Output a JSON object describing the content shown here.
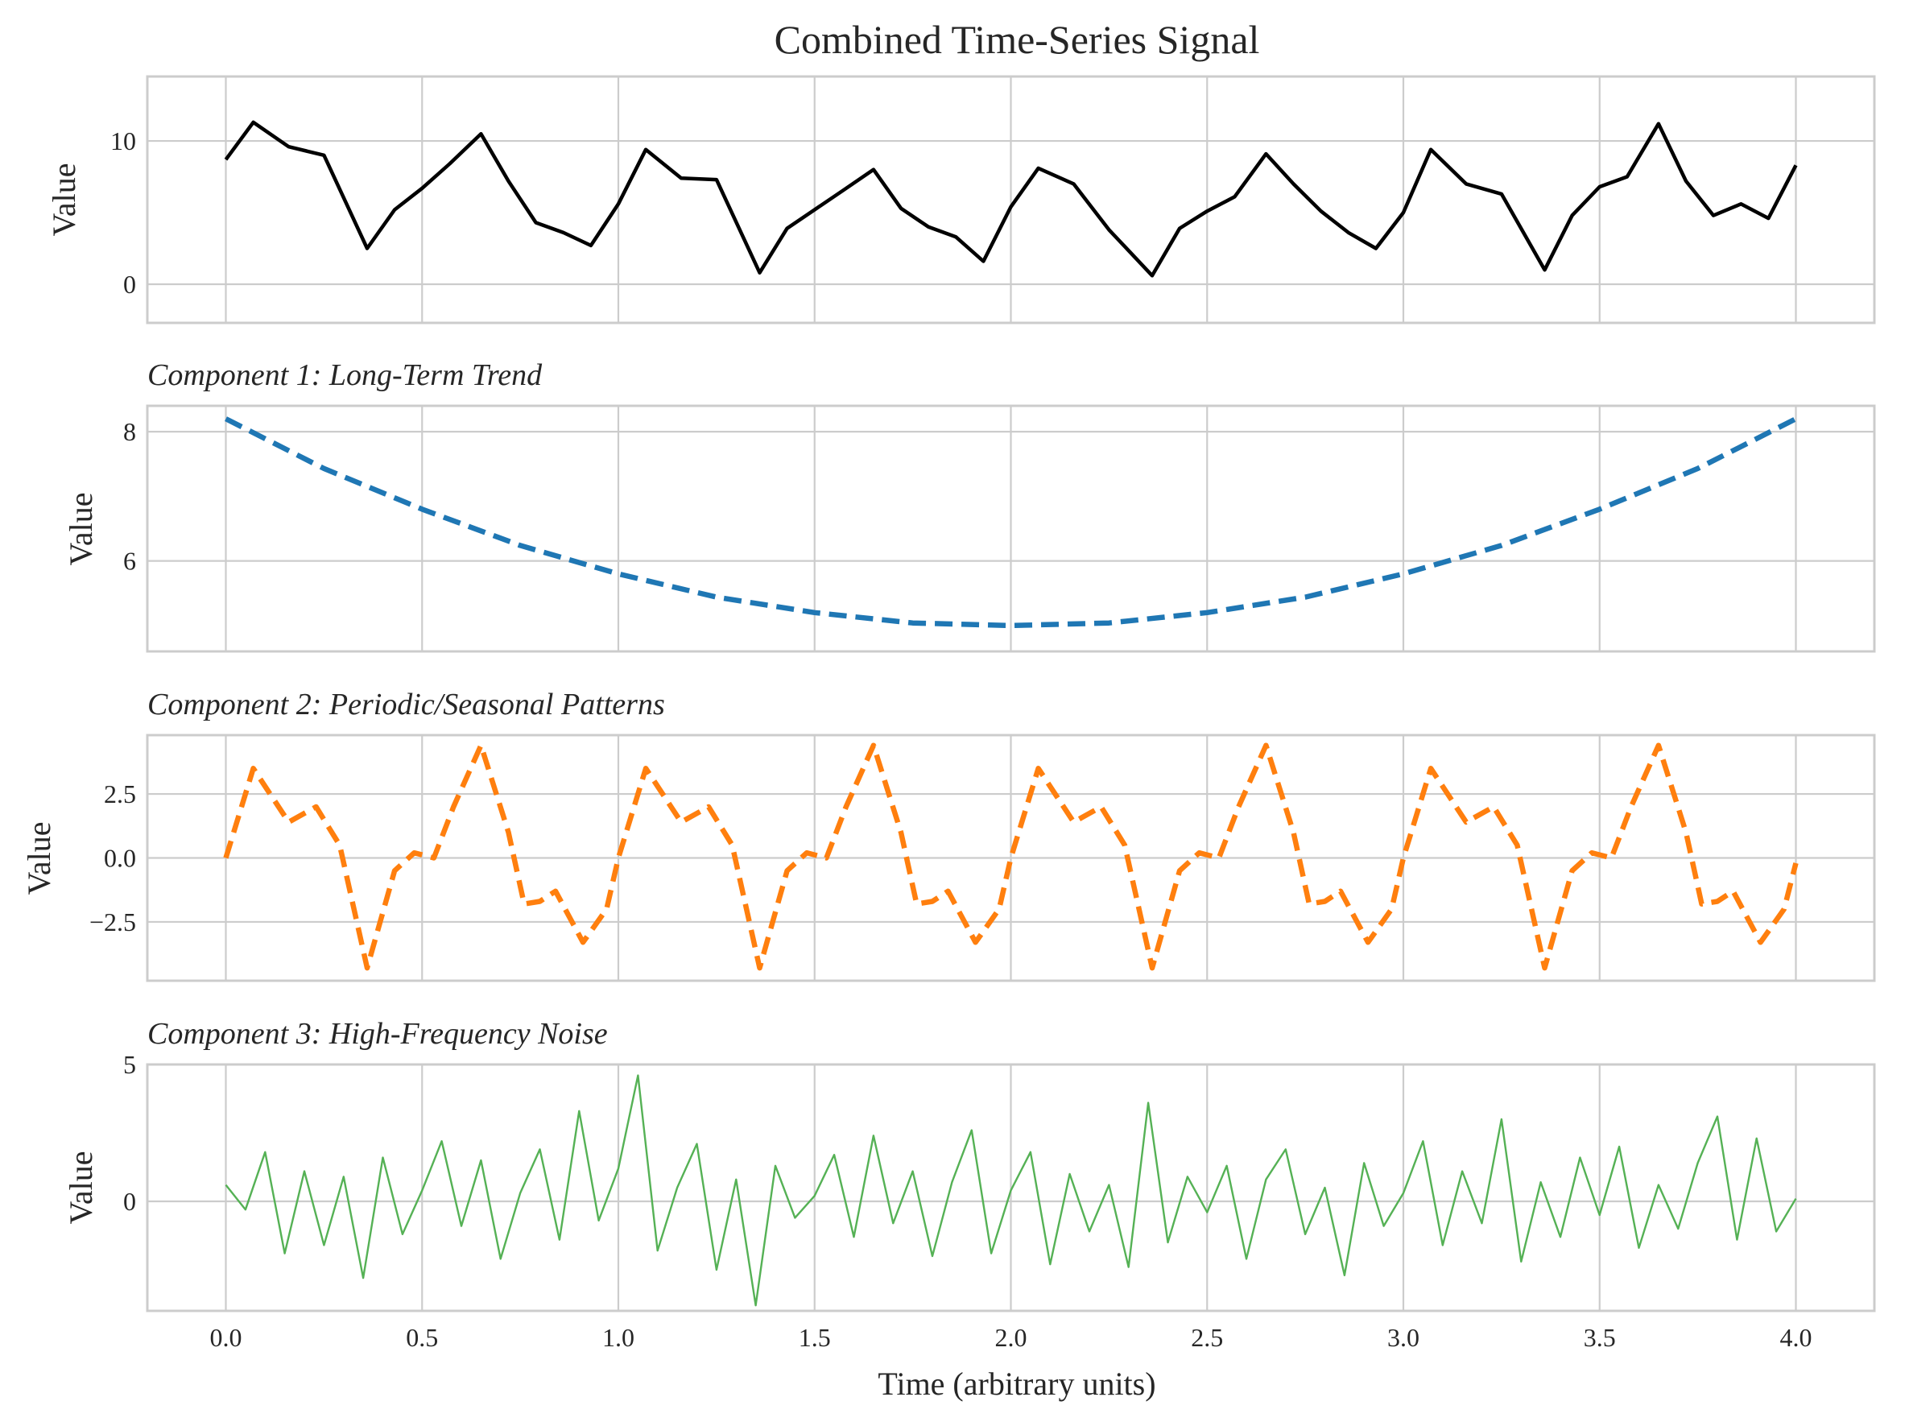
{
  "chart_data": {
    "type": "line",
    "title": "Combined Time-Series Signal",
    "xlabel": "Time (arbitrary units)",
    "xlim": [
      -0.2,
      4.2
    ],
    "xticks": [
      "0.0",
      "0.5",
      "1.0",
      "1.5",
      "2.0",
      "2.5",
      "3.0",
      "3.5",
      "4.0"
    ],
    "grid": true,
    "panels": [
      {
        "id": "combined",
        "subtitle": "",
        "ylabel": "Value",
        "ylim": [
          -2.7,
          14.5
        ],
        "yticks": [
          "0",
          "10"
        ],
        "color": "#000000",
        "style": "solid",
        "series": [
          {
            "name": "",
            "description_only": false,
            "x": [
              0.0,
              0.07,
              0.16,
              0.25,
              0.36,
              0.43,
              0.5,
              0.57,
              0.65,
              0.72,
              0.79,
              0.86,
              0.93,
              1.0,
              1.07,
              1.16,
              1.25,
              1.36,
              1.43,
              1.5,
              1.57,
              1.65,
              1.72,
              1.79,
              1.86,
              1.93,
              2.0,
              2.07,
              2.16,
              2.25,
              2.36,
              2.43,
              2.5,
              2.57,
              2.65,
              2.72,
              2.79,
              2.86,
              2.93,
              3.0,
              3.07,
              3.16,
              3.25,
              3.36,
              3.43,
              3.5,
              3.57,
              3.65,
              3.72,
              3.79,
              3.86,
              3.93,
              4.0
            ],
            "y": [
              8.7,
              11.3,
              9.6,
              9.0,
              2.5,
              5.2,
              6.7,
              8.4,
              10.5,
              7.2,
              4.3,
              3.6,
              2.7,
              5.6,
              9.4,
              7.4,
              7.3,
              0.8,
              3.9,
              5.2,
              6.5,
              8.0,
              5.3,
              4.0,
              3.3,
              1.6,
              5.4,
              8.1,
              7.0,
              3.8,
              0.6,
              3.9,
              5.1,
              6.1,
              9.1,
              7.0,
              5.1,
              3.6,
              2.5,
              5.0,
              9.4,
              7.0,
              6.3,
              1.0,
              4.8,
              6.8,
              7.5,
              11.2,
              7.2,
              4.8,
              5.6,
              4.6,
              8.3
            ]
          }
        ]
      },
      {
        "id": "trend",
        "subtitle": "Component 1: Long-Term Trend",
        "ylabel": "Value",
        "ylim": [
          4.6,
          8.4
        ],
        "yticks": [
          "6",
          "8"
        ],
        "color": "#1f77b4",
        "style": "dashed",
        "series": [
          {
            "name": "",
            "x": [
              0.0,
              0.25,
              0.5,
              0.75,
              1.0,
              1.25,
              1.5,
              1.75,
              2.0,
              2.25,
              2.5,
              2.75,
              3.0,
              3.25,
              3.5,
              3.75,
              4.0
            ],
            "y": [
              8.2,
              7.43,
              6.8,
              6.24,
              5.8,
              5.44,
              5.2,
              5.04,
              5.0,
              5.04,
              5.2,
              5.44,
              5.8,
              6.24,
              6.8,
              7.43,
              8.2
            ]
          }
        ]
      },
      {
        "id": "periodic",
        "subtitle": "Component 2: Periodic/Seasonal Patterns",
        "ylabel": "Value",
        "ylim": [
          -4.8,
          4.8
        ],
        "yticks": [
          "2.5",
          "0.0",
          "−2.5"
        ],
        "color": "#ff7f0e",
        "style": "dashed",
        "series": [
          {
            "name": "",
            "x": [
              0.0,
              0.07,
              0.16,
              0.23,
              0.29,
              0.36,
              0.43,
              0.48,
              0.53,
              0.58,
              0.65,
              0.72,
              0.76,
              0.8,
              0.84,
              0.91,
              0.97,
              1.0,
              1.07,
              1.16,
              1.23,
              1.29,
              1.36,
              1.43,
              1.48,
              1.53,
              1.58,
              1.65,
              1.72,
              1.76,
              1.8,
              1.84,
              1.91,
              1.97,
              2.0,
              2.07,
              2.16,
              2.23,
              2.29,
              2.36,
              2.43,
              2.48,
              2.53,
              2.58,
              2.65,
              2.72,
              2.76,
              2.8,
              2.84,
              2.91,
              2.97,
              3.0,
              3.07,
              3.16,
              3.23,
              3.29,
              3.36,
              3.43,
              3.48,
              3.53,
              3.58,
              3.65,
              3.72,
              3.76,
              3.8,
              3.84,
              3.91,
              3.97,
              4.0
            ],
            "y": [
              0.0,
              3.5,
              1.4,
              2.0,
              0.5,
              -4.3,
              -0.5,
              0.2,
              0.0,
              2.0,
              4.4,
              1.0,
              -1.8,
              -1.7,
              -1.3,
              -3.3,
              -2.0,
              0.0,
              3.5,
              1.4,
              2.0,
              0.5,
              -4.3,
              -0.5,
              0.2,
              0.0,
              2.0,
              4.4,
              1.0,
              -1.8,
              -1.7,
              -1.3,
              -3.3,
              -2.0,
              0.0,
              3.5,
              1.4,
              2.0,
              0.5,
              -4.3,
              -0.5,
              0.2,
              0.0,
              2.0,
              4.4,
              1.0,
              -1.8,
              -1.7,
              -1.3,
              -3.3,
              -2.0,
              0.0,
              3.5,
              1.4,
              2.0,
              0.5,
              -4.3,
              -0.5,
              0.2,
              0.0,
              2.0,
              4.4,
              1.0,
              -1.8,
              -1.7,
              -1.3,
              -3.3,
              -2.0,
              -0.2
            ]
          }
        ]
      },
      {
        "id": "noise",
        "subtitle": "Component 3: High-Frequency Noise",
        "ylabel": "Value",
        "ylim": [
          -4.0,
          5.0
        ],
        "yticks": [
          "5",
          "0"
        ],
        "color": "#55b155",
        "style": "thin",
        "series": [
          {
            "name": "",
            "x": [
              0.0,
              0.05,
              0.1,
              0.15,
              0.2,
              0.25,
              0.3,
              0.35,
              0.4,
              0.45,
              0.5,
              0.55,
              0.6,
              0.65,
              0.7,
              0.75,
              0.8,
              0.85,
              0.9,
              0.95,
              1.0,
              1.05,
              1.1,
              1.15,
              1.2,
              1.25,
              1.3,
              1.35,
              1.4,
              1.45,
              1.5,
              1.55,
              1.6,
              1.65,
              1.7,
              1.75,
              1.8,
              1.85,
              1.9,
              1.95,
              2.0,
              2.05,
              2.1,
              2.15,
              2.2,
              2.25,
              2.3,
              2.35,
              2.4,
              2.45,
              2.5,
              2.55,
              2.6,
              2.65,
              2.7,
              2.75,
              2.8,
              2.85,
              2.9,
              2.95,
              3.0,
              3.05,
              3.1,
              3.15,
              3.2,
              3.25,
              3.3,
              3.35,
              3.4,
              3.45,
              3.5,
              3.55,
              3.6,
              3.65,
              3.7,
              3.75,
              3.8,
              3.85,
              3.9,
              3.95,
              4.0
            ],
            "y": [
              0.6,
              -0.3,
              1.8,
              -1.9,
              1.1,
              -1.6,
              0.9,
              -2.8,
              1.6,
              -1.2,
              0.4,
              2.2,
              -0.9,
              1.5,
              -2.1,
              0.3,
              1.9,
              -1.4,
              3.3,
              -0.7,
              1.2,
              4.6,
              -1.8,
              0.5,
              2.1,
              -2.5,
              0.8,
              -3.8,
              1.3,
              -0.6,
              0.2,
              1.7,
              -1.3,
              2.4,
              -0.8,
              1.1,
              -2.0,
              0.7,
              2.6,
              -1.9,
              0.4,
              1.8,
              -2.3,
              1.0,
              -1.1,
              0.6,
              -2.4,
              3.6,
              -1.5,
              0.9,
              -0.4,
              1.3,
              -2.1,
              0.8,
              1.9,
              -1.2,
              0.5,
              -2.7,
              1.4,
              -0.9,
              0.3,
              2.2,
              -1.6,
              1.1,
              -0.8,
              3.0,
              -2.2,
              0.7,
              -1.3,
              1.6,
              -0.5,
              2.0,
              -1.7,
              0.6,
              -1.0,
              1.4,
              3.1,
              -1.4,
              2.3,
              -1.1,
              0.1
            ]
          }
        ]
      }
    ]
  }
}
